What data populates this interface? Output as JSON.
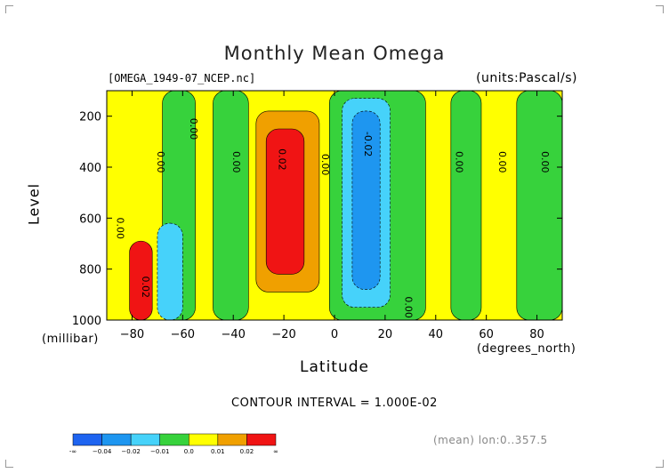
{
  "title": "Monthly Mean Omega",
  "file_label": "[OMEGA_1949-07_NCEP.nc]",
  "units_label": "(units:Pascal/s)",
  "footer": {
    "contour_interval": "CONTOUR INTERVAL = 1.000E-02",
    "mean_label": "(mean) lon:0..357.5"
  },
  "colors": {
    "le_m004": "#1e64f0",
    "m004_m002": "#1e96f0",
    "m002_m001": "#46d2fa",
    "m001_0": "#37d23c",
    "0_001": "#ffff00",
    "001_002": "#f0a000",
    "ge_002": "#f01414"
  },
  "colorbar": {
    "labels": [
      "-∞",
      "−0.04",
      "−0.02",
      "−0.01",
      "0.0",
      "0.01",
      "0.02",
      "∞"
    ],
    "colors": [
      "#1e64f0",
      "#1e96f0",
      "#46d2fa",
      "#37d23c",
      "#ffff00",
      "#f0a000",
      "#f01414"
    ]
  },
  "chart_data": {
    "type": "heatmap",
    "title": "Monthly Mean Omega",
    "xlabel": "Latitude",
    "xunits": "(degrees_north)",
    "ylabel": "Level",
    "yunits": "(millibar)",
    "xlim": [
      -90,
      90
    ],
    "ylim": [
      1000,
      100
    ],
    "x_ticks": [
      -80,
      -60,
      -40,
      -20,
      0,
      20,
      40,
      60,
      80
    ],
    "y_ticks": [
      200,
      400,
      600,
      800,
      1000
    ],
    "contour_levels": [
      -0.04,
      -0.02,
      -0.01,
      0.0,
      0.01,
      0.02
    ],
    "contour_labels": [
      {
        "text": "0.00",
        "lat": -57,
        "level": 250
      },
      {
        "text": "0.00",
        "lat": -70,
        "level": 380
      },
      {
        "text": "0.00",
        "lat": -40,
        "level": 380
      },
      {
        "text": "0.00",
        "lat": -86,
        "level": 640
      },
      {
        "text": "0.02",
        "lat": -76,
        "level": 870
      },
      {
        "text": "0.02",
        "lat": -22,
        "level": 370
      },
      {
        "text": "0.00",
        "lat": -5,
        "level": 390
      },
      {
        "text": "-0.02",
        "lat": 12,
        "level": 310
      },
      {
        "text": "0.00",
        "lat": 28,
        "level": 950
      },
      {
        "text": "0.00",
        "lat": 48,
        "level": 380
      },
      {
        "text": "0.00",
        "lat": 65,
        "level": 380
      },
      {
        "text": "0.00",
        "lat": 82,
        "level": 380
      }
    ],
    "regions": [
      {
        "level": "0_001",
        "lat_range": [
          -90,
          90
        ],
        "p_range": [
          100,
          1000
        ],
        "desc": "background"
      },
      {
        "level": "m001_0",
        "lat_range": [
          -68,
          -55
        ],
        "p_range": [
          100,
          1000
        ]
      },
      {
        "level": "m001_0",
        "lat_range": [
          -48,
          -34
        ],
        "p_range": [
          100,
          1000
        ]
      },
      {
        "level": "001_002",
        "lat_range": [
          -31,
          -6
        ],
        "p_range": [
          180,
          890
        ]
      },
      {
        "level": "ge_002",
        "lat_range": [
          -27,
          -12
        ],
        "p_range": [
          250,
          820
        ]
      },
      {
        "level": "m001_0",
        "lat_range": [
          -2,
          36
        ],
        "p_range": [
          100,
          1000
        ]
      },
      {
        "level": "m002_m001",
        "lat_range": [
          3,
          22
        ],
        "p_range": [
          130,
          950
        ]
      },
      {
        "level": "m004_m002",
        "lat_range": [
          7,
          18
        ],
        "p_range": [
          180,
          880
        ]
      },
      {
        "level": "m001_0",
        "lat_range": [
          46,
          58
        ],
        "p_range": [
          100,
          1000
        ]
      },
      {
        "level": "m001_0",
        "lat_range": [
          72,
          90
        ],
        "p_range": [
          100,
          1000
        ]
      },
      {
        "level": "ge_002",
        "lat_range": [
          -81,
          -72
        ],
        "p_range": [
          690,
          1000
        ]
      },
      {
        "level": "m002_m001",
        "lat_range": [
          -70,
          -60
        ],
        "p_range": [
          620,
          1000
        ]
      }
    ]
  }
}
